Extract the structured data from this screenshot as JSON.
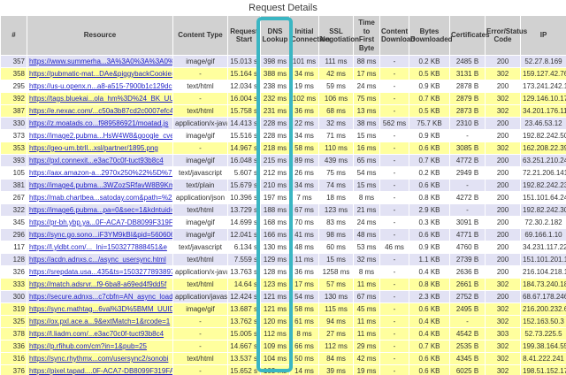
{
  "title": "Request Details",
  "highlight": {
    "column_key": "dns",
    "column_label": "DNS Lookup",
    "color": "#3ab6c3"
  },
  "colors": {
    "header_bg": "#d1d1d1",
    "row_lavender": "#e2e2f4",
    "row_yellow": "#ffff9e",
    "row_white": "#ffffff",
    "link_blue": "#2324c8"
  },
  "table": {
    "columns": [
      {
        "key": "num",
        "label": "#"
      },
      {
        "key": "resource",
        "label": "Resource"
      },
      {
        "key": "ctype",
        "label": "Content Type"
      },
      {
        "key": "rstart",
        "label": "Request Start"
      },
      {
        "key": "dns",
        "label": "DNS Lookup"
      },
      {
        "key": "init",
        "label": "Initial Connection"
      },
      {
        "key": "ssl",
        "label": "SSL Negotiation"
      },
      {
        "key": "ttfb",
        "label": "Time to First Byte"
      },
      {
        "key": "cdl",
        "label": "Content Download"
      },
      {
        "key": "bytes",
        "label": "Bytes Downloaded"
      },
      {
        "key": "certs",
        "label": "Certificates"
      },
      {
        "key": "code",
        "label": "Error/Status Code"
      },
      {
        "key": "ip",
        "label": "IP"
      }
    ],
    "rows": [
      {
        "num": "357",
        "resource": "https://www.summerha...3A%3A0%3A%3A0%3A%3A0",
        "ctype": "image/gif",
        "rstart": "15.013 s",
        "dns": "398 ms",
        "init": "101 ms",
        "ssl": "111 ms",
        "ttfb": "88 ms",
        "cdl": "-",
        "bytes": "0.2 KB",
        "certs": "2485 B",
        "code": "200",
        "ip": "52.27.8.169",
        "shade": "lavender"
      },
      {
        "num": "358",
        "resource": "https://pubmatic-mat...DAe&piggybackCookie=",
        "ctype": "-",
        "rstart": "15.164 s",
        "dns": "388 ms",
        "init": "34 ms",
        "ssl": "42 ms",
        "ttfb": "17 ms",
        "cdl": "-",
        "bytes": "0.5 KB",
        "certs": "3131 B",
        "code": "302",
        "ip": "159.127.42.76",
        "shade": "yellow"
      },
      {
        "num": "295",
        "resource": "https://us-u.openx.n...a8-a515-7900b1c129dc",
        "ctype": "text/html",
        "rstart": "12.034 s",
        "dns": "238 ms",
        "init": "19 ms",
        "ssl": "59 ms",
        "ttfb": "24 ms",
        "cdl": "-",
        "bytes": "0.9 KB",
        "certs": "2878 B",
        "code": "200",
        "ip": "173.241.242.143",
        "shade": "white"
      },
      {
        "num": "392",
        "resource": "https://tags.bluekai...ola_hm%3D%24_BK_UUID",
        "ctype": "-",
        "rstart": "16.004 s",
        "dns": "232 ms",
        "init": "102 ms",
        "ssl": "106 ms",
        "ttfb": "75 ms",
        "cdl": "-",
        "bytes": "0.7 KB",
        "certs": "2879 B",
        "code": "302",
        "ip": "129.146.10.170",
        "shade": "yellow"
      },
      {
        "num": "387",
        "resource": "https://e.nexac.com/...c50a3b87cd2c0007efc4",
        "ctype": "text/html",
        "rstart": "15.758 s",
        "dns": "231 ms",
        "init": "36 ms",
        "ssl": "68 ms",
        "ttfb": "13 ms",
        "cdl": "-",
        "bytes": "0.5 KB",
        "certs": "2873 B",
        "code": "302",
        "ip": "34.201.176.11",
        "shade": "yellow"
      },
      {
        "num": "330",
        "resource": "https://z.moatads.co...f989586921/moatad.js",
        "ctype": "application/x-javascript",
        "rstart": "14.413 s",
        "dns": "228 ms",
        "init": "22 ms",
        "ssl": "32 ms",
        "ttfb": "38 ms",
        "cdl": "562 ms",
        "bytes": "75.7 KB",
        "certs": "2310 B",
        "code": "200",
        "ip": "23.46.53.12",
        "shade": "lavender"
      },
      {
        "num": "373",
        "resource": "https://image2.pubma...HsW4W8&google_cver=1",
        "ctype": "image/gif",
        "rstart": "15.516 s",
        "dns": "228 ms",
        "init": "34 ms",
        "ssl": "71 ms",
        "ttfb": "15 ms",
        "cdl": "-",
        "bytes": "0.9 KB",
        "certs": "-",
        "code": "200",
        "ip": "192.82.242.50",
        "shade": "white"
      },
      {
        "num": "353",
        "resource": "https://geo-um.btrll...xsl/partner/1895.png",
        "ctype": "-",
        "rstart": "14.967 s",
        "dns": "218 ms",
        "init": "58 ms",
        "ssl": "110 ms",
        "ttfb": "16 ms",
        "cdl": "-",
        "bytes": "0.6 KB",
        "certs": "3085 B",
        "code": "302",
        "ip": "162.208.22.39",
        "shade": "yellow"
      },
      {
        "num": "393",
        "resource": "https://pxl.connexit...e3ac70c0f-tuct93b8c4",
        "ctype": "image/gif",
        "rstart": "16.048 s",
        "dns": "215 ms",
        "init": "89 ms",
        "ssl": "439 ms",
        "ttfb": "65 ms",
        "cdl": "-",
        "bytes": "0.7 KB",
        "certs": "4772 B",
        "code": "200",
        "ip": "63.251.210.243",
        "shade": "lavender"
      },
      {
        "num": "105",
        "resource": "https://aax.amazon-a...2970x250%22%5D%7D%5D",
        "ctype": "text/javascript",
        "rstart": "5.607 s",
        "dns": "212 ms",
        "init": "26 ms",
        "ssl": "75 ms",
        "ttfb": "54 ms",
        "cdl": "-",
        "bytes": "0.2 KB",
        "certs": "2949 B",
        "code": "200",
        "ip": "72.21.206.141",
        "shade": "white"
      },
      {
        "num": "381",
        "resource": "https://image4.pubma...3WZozSRfavW8B9KmXAw&",
        "ctype": "text/plain",
        "rstart": "15.679 s",
        "dns": "210 ms",
        "init": "34 ms",
        "ssl": "74 ms",
        "ttfb": "15 ms",
        "cdl": "-",
        "bytes": "0.6 KB",
        "certs": "-",
        "code": "200",
        "ip": "192.82.242.23",
        "shade": "lavender"
      },
      {
        "num": "267",
        "resource": "https://mab.chartbea...satoday.com&path=%2F",
        "ctype": "application/json",
        "rstart": "10.396 s",
        "dns": "197 ms",
        "init": "7 ms",
        "ssl": "18 ms",
        "ttfb": "8 ms",
        "cdl": "-",
        "bytes": "0.8 KB",
        "certs": "4272 B",
        "code": "200",
        "ip": "151.101.64.249",
        "shade": "white"
      },
      {
        "num": "322",
        "resource": "https://image6.pubma...pa=0&sec=1&kdntuid=1",
        "ctype": "text/html",
        "rstart": "13.729 s",
        "dns": "188 ms",
        "init": "67 ms",
        "ssl": "123 ms",
        "ttfb": "21 ms",
        "cdl": "-",
        "bytes": "2.9 KB",
        "certs": "-",
        "code": "200",
        "ip": "192.82.242.30",
        "shade": "lavender"
      },
      {
        "num": "345",
        "resource": "https://pr-bh.ybp.ya...0F-ACA7-DB8099F319FA",
        "ctype": "image/gif",
        "rstart": "14.699 s",
        "dns": "168 ms",
        "init": "70 ms",
        "ssl": "83 ms",
        "ttfb": "24 ms",
        "cdl": "-",
        "bytes": "0.3 KB",
        "certs": "3091 B",
        "code": "200",
        "ip": "72.30.2.182",
        "shade": "white"
      },
      {
        "num": "296",
        "resource": "https://sync.go.sono...iF3YM9kBI&pid=560606",
        "ctype": "image/gif",
        "rstart": "12.041 s",
        "dns": "166 ms",
        "init": "41 ms",
        "ssl": "98 ms",
        "ttfb": "48 ms",
        "cdl": "-",
        "bytes": "0.6 KB",
        "certs": "4771 B",
        "code": "200",
        "ip": "69.166.1.10",
        "shade": "lavender"
      },
      {
        "num": "117",
        "resource": "https://l.yldbt.com/..._lni=1503277888451&e",
        "ctype": "text/javascript",
        "rstart": "6.134 s",
        "dns": "130 ms",
        "init": "48 ms",
        "ssl": "60 ms",
        "ttfb": "53 ms",
        "cdl": "46 ms",
        "bytes": "0.9 KB",
        "certs": "4760 B",
        "code": "200",
        "ip": "34.231.117.225",
        "shade": "white"
      },
      {
        "num": "128",
        "resource": "https://acdn.adnxs.c.../async_usersync.html",
        "ctype": "text/html",
        "rstart": "7.559 s",
        "dns": "129 ms",
        "init": "11 ms",
        "ssl": "15 ms",
        "ttfb": "32 ms",
        "cdl": "-",
        "bytes": "1.1 KB",
        "certs": "2739 B",
        "code": "200",
        "ip": "151.101.201.108",
        "shade": "lavender"
      },
      {
        "num": "326",
        "resource": "https://srepdata.usa...435&ts=1503277893897",
        "ctype": "application/x-javascript",
        "rstart": "13.763 s",
        "dns": "128 ms",
        "init": "36 ms",
        "ssl": "1258 ms",
        "ttfb": "8 ms",
        "cdl": "-",
        "bytes": "0.4 KB",
        "certs": "2636 B",
        "code": "200",
        "ip": "216.104.218.198",
        "shade": "white"
      },
      {
        "num": "333",
        "resource": "https://match.adsrvr...f9-6ba8-a69ed4f9dd5f",
        "ctype": "text/html",
        "rstart": "14.64 s",
        "dns": "123 ms",
        "init": "17 ms",
        "ssl": "57 ms",
        "ttfb": "11 ms",
        "cdl": "-",
        "bytes": "0.8 KB",
        "certs": "2661 B",
        "code": "302",
        "ip": "184.73.240.181",
        "shade": "yellow"
      },
      {
        "num": "300",
        "resource": "https://secure.adnxs...c7cbfn=AN_async_load",
        "ctype": "application/javascript",
        "rstart": "12.424 s",
        "dns": "121 ms",
        "init": "54 ms",
        "ssl": "130 ms",
        "ttfb": "67 ms",
        "cdl": "-",
        "bytes": "2.3 KB",
        "certs": "2752 B",
        "code": "200",
        "ip": "68.67.178.246",
        "shade": "lavender"
      },
      {
        "num": "319",
        "resource": "https://sync.mathtag...6val%3D%5BMM_UUID%5D",
        "ctype": "image/gif",
        "rstart": "13.687 s",
        "dns": "121 ms",
        "init": "58 ms",
        "ssl": "115 ms",
        "ttfb": "45 ms",
        "cdl": "-",
        "bytes": "0.6 KB",
        "certs": "2495 B",
        "code": "302",
        "ip": "216.200.232.61",
        "shade": "yellow"
      },
      {
        "num": "325",
        "resource": "https://ox.pxl.ace.a...9&extMatch=1&rcode=1",
        "ctype": "-",
        "rstart": "13.762 s",
        "dns": "120 ms",
        "init": "61 ms",
        "ssl": "94 ms",
        "ttfb": "11 ms",
        "cdl": "-",
        "bytes": "0.4 KB",
        "certs": "-",
        "code": "302",
        "ip": "152.163.50.3",
        "shade": "yellow"
      },
      {
        "num": "378",
        "resource": "https://l.liadm.com/...e3ac70c0f-tuct93b8c4",
        "ctype": "-",
        "rstart": "15.005 s",
        "dns": "112 ms",
        "init": "8 ms",
        "ssl": "27 ms",
        "ttfb": "11 ms",
        "cdl": "-",
        "bytes": "0.4 KB",
        "certs": "4542 B",
        "code": "303",
        "ip": "52.73.225.5",
        "shade": "yellow"
      },
      {
        "num": "336",
        "resource": "https://p.rfihub.com/cm?in=1&pub=25",
        "ctype": "-",
        "rstart": "14.667 s",
        "dns": "109 ms",
        "init": "66 ms",
        "ssl": "112 ms",
        "ttfb": "29 ms",
        "cdl": "-",
        "bytes": "0.7 KB",
        "certs": "2535 B",
        "code": "302",
        "ip": "199.38.164.55",
        "shade": "yellow"
      },
      {
        "num": "316",
        "resource": "https://sync.rhythmx...com/usersync2/sonobi",
        "ctype": "text/html",
        "rstart": "13.537 s",
        "dns": "104 ms",
        "init": "50 ms",
        "ssl": "84 ms",
        "ttfb": "42 ms",
        "cdl": "-",
        "bytes": "0.6 KB",
        "certs": "4345 B",
        "code": "302",
        "ip": "8.41.222.241",
        "shade": "yellow"
      },
      {
        "num": "376",
        "resource": "https://pixel.tapad....0F-ACA7-DB8099F319FA",
        "ctype": "-",
        "rstart": "15.652 s",
        "dns": "103 ms",
        "init": "14 ms",
        "ssl": "39 ms",
        "ttfb": "19 ms",
        "cdl": "-",
        "bytes": "0.6 KB",
        "certs": "6025 B",
        "code": "302",
        "ip": "198.51.152.178",
        "shade": "yellow"
      }
    ]
  }
}
